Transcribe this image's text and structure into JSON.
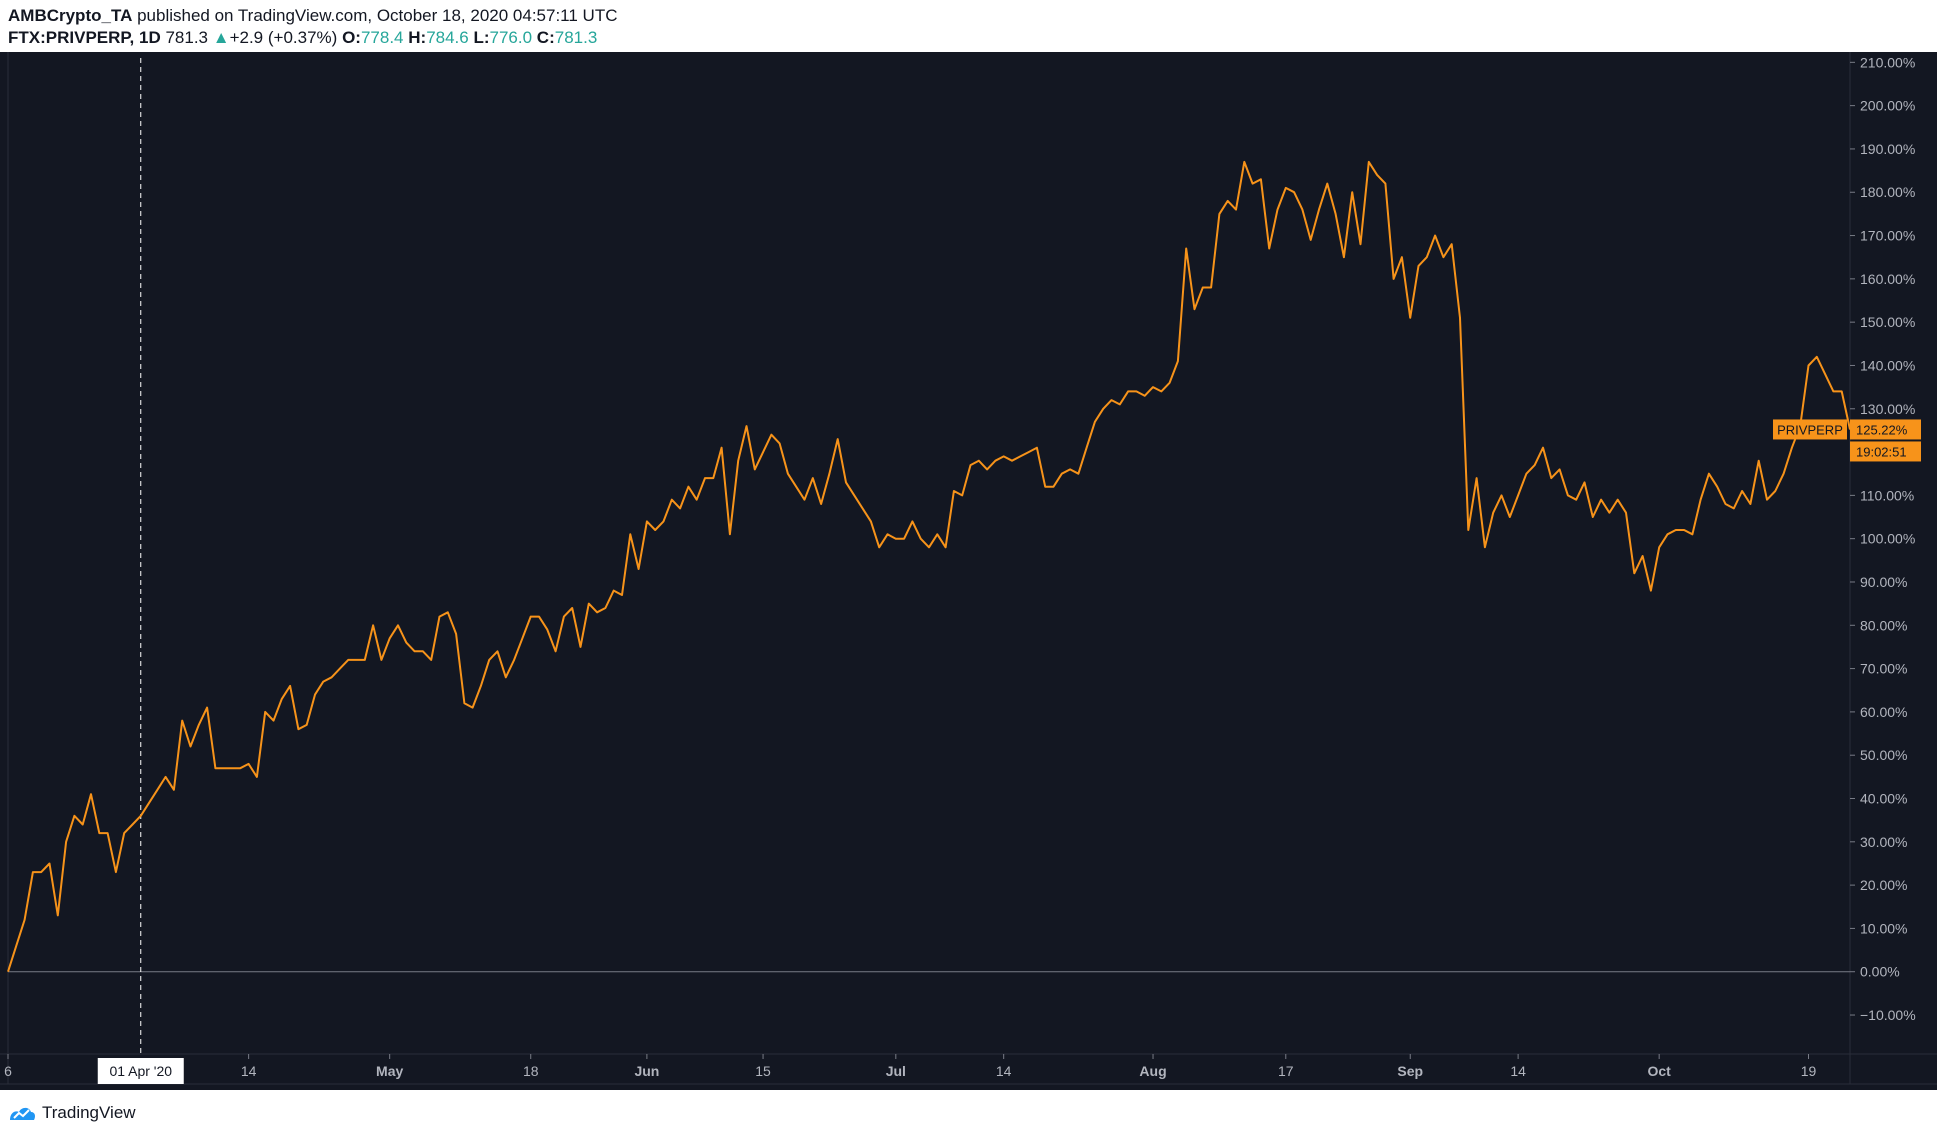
{
  "header": {
    "author": "AMBCrypto_TA",
    "published_text": "published on TradingView.com, October 18, 2020 04:57:11 UTC",
    "symbol": "FTX:PRIVPERP, 1D",
    "last": "781.3",
    "change": "+2.9 (+0.37%)",
    "open_label": "O:",
    "open": "778.4",
    "high_label": "H:",
    "high": "784.6",
    "low_label": "L:",
    "low": "776.0",
    "close_label": "C:",
    "close": "781.3"
  },
  "footer": {
    "brand": "TradingView"
  },
  "colors": {
    "line": "#f7931a",
    "background": "#131722",
    "text": "#b2b5be",
    "up": "#26a69a"
  },
  "chart_data": {
    "type": "line",
    "series": [
      {
        "name": "PRIVPERP",
        "x_start": "2020-03-16",
        "y_start": 0,
        "values": [
          0,
          6,
          12,
          23,
          23,
          25,
          13,
          30,
          36,
          34,
          41,
          32,
          32,
          23,
          32,
          34,
          36,
          39,
          42,
          45,
          42,
          58,
          52,
          57,
          61,
          47,
          47,
          47,
          47,
          48,
          45,
          60,
          58,
          63,
          66,
          56,
          57,
          64,
          67,
          68,
          70,
          72,
          72,
          72,
          80,
          72,
          77,
          80,
          76,
          74,
          74,
          72,
          82,
          83,
          78,
          62,
          61,
          66,
          72,
          74,
          68,
          72,
          77,
          82,
          82,
          79,
          74,
          82,
          84,
          75,
          85,
          83,
          84,
          88,
          87,
          101,
          93,
          104,
          102,
          104,
          109,
          107,
          112,
          109,
          114,
          114,
          121,
          101,
          118,
          126,
          116,
          120,
          124,
          122,
          115,
          112,
          109,
          114,
          108,
          115,
          123,
          113,
          110,
          107,
          104,
          98,
          101,
          100,
          100,
          104,
          100,
          98,
          101,
          98,
          111,
          110,
          117,
          118,
          116,
          118,
          119,
          118,
          119,
          120,
          121,
          112,
          112,
          115,
          116,
          115,
          121,
          127,
          130,
          132,
          131,
          134,
          134,
          133,
          135,
          134,
          136,
          141,
          167,
          153,
          158,
          158,
          175,
          178,
          176,
          187,
          182,
          183,
          167,
          176,
          181,
          180,
          176,
          169,
          176,
          182,
          175,
          165,
          180,
          168,
          187,
          184,
          182,
          160,
          165,
          151,
          163,
          165,
          170,
          165,
          168,
          151,
          102,
          114,
          98,
          106,
          110,
          105,
          110,
          115,
          117,
          121,
          114,
          116,
          110,
          109,
          113,
          105,
          109,
          106,
          109,
          106,
          92,
          96,
          88,
          98,
          101,
          102,
          102,
          101,
          109,
          115,
          112,
          108,
          107,
          111,
          108,
          118,
          109,
          111,
          115,
          121,
          126,
          140,
          142,
          138,
          134,
          134,
          125.22
        ]
      }
    ],
    "x_ticks": [
      {
        "label": "6",
        "date": "2020-03-16"
      },
      {
        "label": "14",
        "date": "2020-04-14"
      },
      {
        "label": "May",
        "date": "2020-05-01"
      },
      {
        "label": "18",
        "date": "2020-05-18"
      },
      {
        "label": "Jun",
        "date": "2020-06-01"
      },
      {
        "label": "15",
        "date": "2020-06-15"
      },
      {
        "label": "Jul",
        "date": "2020-07-01"
      },
      {
        "label": "14",
        "date": "2020-07-14"
      },
      {
        "label": "Aug",
        "date": "2020-08-01"
      },
      {
        "label": "17",
        "date": "2020-08-17"
      },
      {
        "label": "Sep",
        "date": "2020-09-01"
      },
      {
        "label": "14",
        "date": "2020-09-14"
      },
      {
        "label": "Oct",
        "date": "2020-10-01"
      },
      {
        "label": "19",
        "date": "2020-10-19"
      }
    ],
    "x_range": [
      "2020-03-16",
      "2020-10-24"
    ],
    "y_ticks": [
      -10,
      0,
      10,
      20,
      30,
      40,
      50,
      60,
      70,
      80,
      90,
      100,
      110,
      120,
      130,
      140,
      150,
      160,
      170,
      180,
      190,
      200,
      210
    ],
    "y_tick_labels": [
      "−10.00%",
      "0.00%",
      "10.00%",
      "20.00%",
      "30.00%",
      "40.00%",
      "50.00%",
      "60.00%",
      "70.00%",
      "80.00%",
      "90.00%",
      "100.00%",
      "110.00%",
      "120.00%",
      "130.00%",
      "140.00%",
      "150.00%",
      "160.00%",
      "170.00%",
      "180.00%",
      "190.00%",
      "200.00%",
      "210.00%"
    ],
    "ylim": [
      -19,
      211
    ],
    "crosshair": {
      "date": "2020-04-01",
      "label": "01 Apr '20"
    },
    "last_value_label": {
      "name": "PRIVPERP",
      "value_text": "125.22%",
      "countdown": "19:02:51"
    },
    "grid": false,
    "legend": "none"
  }
}
